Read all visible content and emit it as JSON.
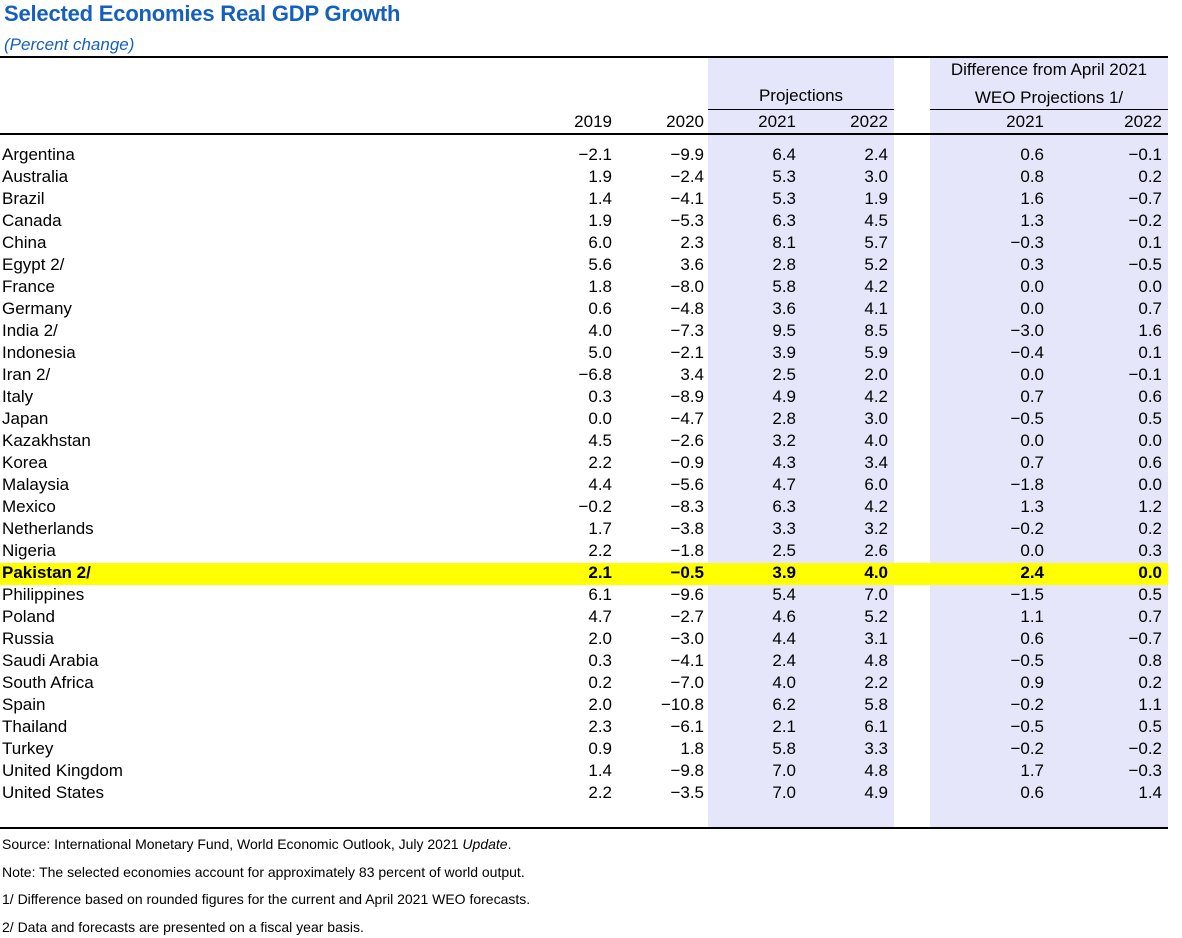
{
  "title": "Selected Economies Real GDP Growth",
  "subtitle": "(Percent change)",
  "headers": {
    "projections": "Projections",
    "difference_line1": "Difference from April 2021",
    "difference_line2": "WEO Projections 1/",
    "y2019": "2019",
    "y2020": "2020",
    "p2021": "2021",
    "p2022": "2022",
    "d2021": "2021",
    "d2022": "2022"
  },
  "colors": {
    "title": "#1560BD",
    "shade": "#E6E6FA",
    "highlight": "#FFFF00"
  },
  "rows": [
    {
      "country": "Argentina",
      "y2019": "−2.1",
      "y2020": "−9.9",
      "p2021": "6.4",
      "p2022": "2.4",
      "d2021": "0.6",
      "d2022": "−0.1"
    },
    {
      "country": "Australia",
      "y2019": "1.9",
      "y2020": "−2.4",
      "p2021": "5.3",
      "p2022": "3.0",
      "d2021": "0.8",
      "d2022": "0.2"
    },
    {
      "country": "Brazil",
      "y2019": "1.4",
      "y2020": "−4.1",
      "p2021": "5.3",
      "p2022": "1.9",
      "d2021": "1.6",
      "d2022": "−0.7"
    },
    {
      "country": "Canada",
      "y2019": "1.9",
      "y2020": "−5.3",
      "p2021": "6.3",
      "p2022": "4.5",
      "d2021": "1.3",
      "d2022": "−0.2"
    },
    {
      "country": "China",
      "y2019": "6.0",
      "y2020": "2.3",
      "p2021": "8.1",
      "p2022": "5.7",
      "d2021": "−0.3",
      "d2022": "0.1"
    },
    {
      "country": "Egypt 2/",
      "y2019": "5.6",
      "y2020": "3.6",
      "p2021": "2.8",
      "p2022": "5.2",
      "d2021": "0.3",
      "d2022": "−0.5"
    },
    {
      "country": "France",
      "y2019": "1.8",
      "y2020": "−8.0",
      "p2021": "5.8",
      "p2022": "4.2",
      "d2021": "0.0",
      "d2022": "0.0"
    },
    {
      "country": "Germany",
      "y2019": "0.6",
      "y2020": "−4.8",
      "p2021": "3.6",
      "p2022": "4.1",
      "d2021": "0.0",
      "d2022": "0.7"
    },
    {
      "country": "India 2/",
      "y2019": "4.0",
      "y2020": "−7.3",
      "p2021": "9.5",
      "p2022": "8.5",
      "d2021": "−3.0",
      "d2022": "1.6"
    },
    {
      "country": "Indonesia",
      "y2019": "5.0",
      "y2020": "−2.1",
      "p2021": "3.9",
      "p2022": "5.9",
      "d2021": "−0.4",
      "d2022": "0.1"
    },
    {
      "country": "Iran 2/",
      "y2019": "−6.8",
      "y2020": "3.4",
      "p2021": "2.5",
      "p2022": "2.0",
      "d2021": "0.0",
      "d2022": "−0.1"
    },
    {
      "country": "Italy",
      "y2019": "0.3",
      "y2020": "−8.9",
      "p2021": "4.9",
      "p2022": "4.2",
      "d2021": "0.7",
      "d2022": "0.6"
    },
    {
      "country": "Japan",
      "y2019": "0.0",
      "y2020": "−4.7",
      "p2021": "2.8",
      "p2022": "3.0",
      "d2021": "−0.5",
      "d2022": "0.5"
    },
    {
      "country": "Kazakhstan",
      "y2019": "4.5",
      "y2020": "−2.6",
      "p2021": "3.2",
      "p2022": "4.0",
      "d2021": "0.0",
      "d2022": "0.0"
    },
    {
      "country": "Korea",
      "y2019": "2.2",
      "y2020": "−0.9",
      "p2021": "4.3",
      "p2022": "3.4",
      "d2021": "0.7",
      "d2022": "0.6"
    },
    {
      "country": "Malaysia",
      "y2019": "4.4",
      "y2020": "−5.6",
      "p2021": "4.7",
      "p2022": "6.0",
      "d2021": "−1.8",
      "d2022": "0.0"
    },
    {
      "country": "Mexico",
      "y2019": "−0.2",
      "y2020": "−8.3",
      "p2021": "6.3",
      "p2022": "4.2",
      "d2021": "1.3",
      "d2022": "1.2"
    },
    {
      "country": "Netherlands",
      "y2019": "1.7",
      "y2020": "−3.8",
      "p2021": "3.3",
      "p2022": "3.2",
      "d2021": "−0.2",
      "d2022": "0.2"
    },
    {
      "country": "Nigeria",
      "y2019": "2.2",
      "y2020": "−1.8",
      "p2021": "2.5",
      "p2022": "2.6",
      "d2021": "0.0",
      "d2022": "0.3"
    },
    {
      "country": "Pakistan 2/",
      "y2019": "2.1",
      "y2020": "−0.5",
      "p2021": "3.9",
      "p2022": "4.0",
      "d2021": "2.4",
      "d2022": "0.0",
      "highlight": true
    },
    {
      "country": "Philippines",
      "y2019": "6.1",
      "y2020": "−9.6",
      "p2021": "5.4",
      "p2022": "7.0",
      "d2021": "−1.5",
      "d2022": "0.5"
    },
    {
      "country": "Poland",
      "y2019": "4.7",
      "y2020": "−2.7",
      "p2021": "4.6",
      "p2022": "5.2",
      "d2021": "1.1",
      "d2022": "0.7"
    },
    {
      "country": "Russia",
      "y2019": "2.0",
      "y2020": "−3.0",
      "p2021": "4.4",
      "p2022": "3.1",
      "d2021": "0.6",
      "d2022": "−0.7"
    },
    {
      "country": "Saudi Arabia",
      "y2019": "0.3",
      "y2020": "−4.1",
      "p2021": "2.4",
      "p2022": "4.8",
      "d2021": "−0.5",
      "d2022": "0.8"
    },
    {
      "country": "South Africa",
      "y2019": "0.2",
      "y2020": "−7.0",
      "p2021": "4.0",
      "p2022": "2.2",
      "d2021": "0.9",
      "d2022": "0.2"
    },
    {
      "country": "Spain",
      "y2019": "2.0",
      "y2020": "−10.8",
      "p2021": "6.2",
      "p2022": "5.8",
      "d2021": "−0.2",
      "d2022": "1.1"
    },
    {
      "country": "Thailand",
      "y2019": "2.3",
      "y2020": "−6.1",
      "p2021": "2.1",
      "p2022": "6.1",
      "d2021": "−0.5",
      "d2022": "0.5"
    },
    {
      "country": "Turkey",
      "y2019": "0.9",
      "y2020": "1.8",
      "p2021": "5.8",
      "p2022": "3.3",
      "d2021": "−0.2",
      "d2022": "−0.2"
    },
    {
      "country": "United Kingdom",
      "y2019": "1.4",
      "y2020": "−9.8",
      "p2021": "7.0",
      "p2022": "4.8",
      "d2021": "1.7",
      "d2022": "−0.3"
    },
    {
      "country": "United States",
      "y2019": "2.2",
      "y2020": "−3.5",
      "p2021": "7.0",
      "p2022": "4.9",
      "d2021": "0.6",
      "d2022": "1.4"
    }
  ],
  "notes": {
    "source_prefix": "Source: International Monetary Fund, World Economic Outlook, July 2021 ",
    "source_italic": "Update",
    "source_suffix": ".",
    "note1": "Note: The selected economies account for approximately 83 percent of world output.",
    "note2": "1/ Difference based on rounded figures for the current and April 2021 WEO forecasts.",
    "note3": "2/ Data and forecasts are presented on a fiscal year basis."
  }
}
